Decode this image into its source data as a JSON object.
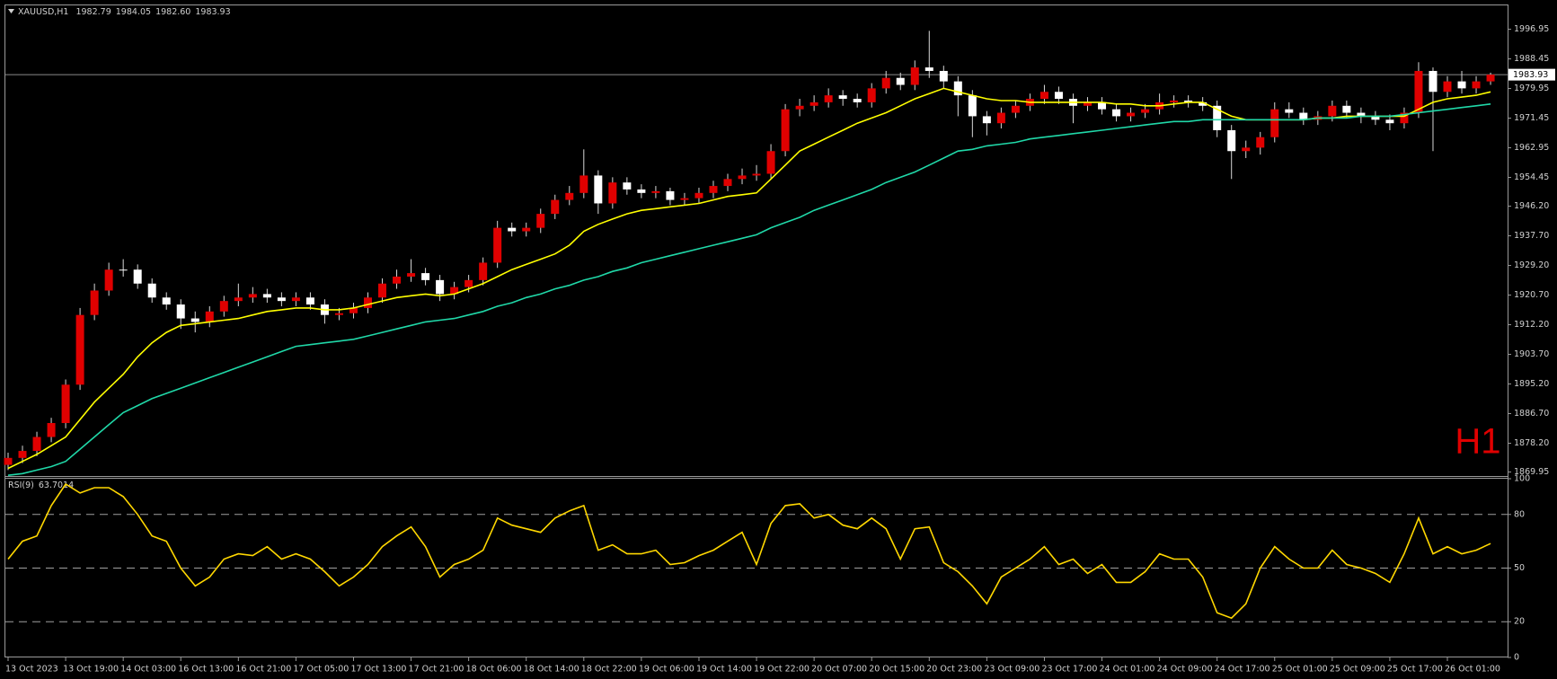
{
  "chart_data": [
    {
      "type": "candlestick",
      "symbol": "XAUUSD,H1",
      "last_bar": [
        1982.79,
        1984.05,
        {
          "value": 1982.6,
          "label": "1982.60"
        },
        1983.93
      ],
      "current_price": 1983.93,
      "timeframe_label": "H1",
      "categories": [
        "13 Oct 2023",
        null,
        null,
        null,
        "13 Oct 19:00",
        null,
        null,
        null,
        "14 Oct 03:00",
        null,
        null,
        null,
        "16 Oct 13:00",
        null,
        null,
        null,
        "16 Oct 21:00",
        null,
        null,
        null,
        "17 Oct 05:00",
        null,
        null,
        null,
        "17 Oct 13:00",
        null,
        null,
        null,
        "17 Oct 21:00",
        null,
        null,
        null,
        "18 Oct 06:00",
        null,
        null,
        null,
        "18 Oct 14:00",
        null,
        null,
        null,
        "18 Oct 22:00",
        null,
        null,
        null,
        "19 Oct 06:00",
        null,
        null,
        null,
        "19 Oct 14:00",
        null,
        null,
        null,
        "19 Oct 22:00",
        null,
        null,
        null,
        "20 Oct 07:00",
        null,
        null,
        null,
        "20 Oct 15:00",
        null,
        null,
        null,
        "20 Oct 23:00",
        null,
        null,
        null,
        "23 Oct 09:00",
        null,
        null,
        null,
        "23 Oct 17:00",
        null,
        null,
        null,
        "24 Oct 01:00",
        null,
        null,
        null,
        "24 Oct 09:00",
        null,
        null,
        null,
        "24 Oct 17:00",
        null,
        null,
        null,
        "25 Oct 01:00",
        null,
        null,
        null,
        "25 Oct 09:00",
        null,
        null,
        null,
        "25 Oct 17:00",
        null,
        null,
        null,
        "26 Oct 01:00",
        null,
        null,
        null
      ],
      "open": [
        1872,
        1874,
        1876,
        1880,
        1884,
        1895,
        1915,
        1922,
        1928,
        1928,
        1924,
        1920,
        1918,
        1914,
        1913,
        1916,
        1919,
        1920,
        1921,
        1920,
        1919,
        1920,
        1918,
        1915,
        1915.5,
        1917,
        1920,
        1924,
        1926,
        1927,
        1925,
        1921,
        1923,
        1925,
        1930,
        1940,
        1939,
        1940,
        1944,
        1948,
        1950,
        1955,
        1947,
        1953,
        1951,
        1950,
        1950.5,
        1948,
        1948.5,
        1950,
        1952,
        1954,
        1955,
        1955.5,
        1962,
        1974,
        1975,
        1976,
        1978,
        1977,
        1976,
        1980,
        1983,
        1981,
        1986,
        1985,
        1982,
        1978,
        1972,
        1970,
        1973,
        1975,
        1977,
        1979,
        1977,
        1975,
        1976,
        1974,
        1972,
        1973,
        1974,
        1976,
        1976.5,
        1976,
        1975,
        1968,
        1962,
        1963,
        1966,
        1974,
        1973,
        1971,
        1972,
        1975,
        1973,
        1972,
        1971,
        1970,
        1973,
        1985,
        1979,
        1982,
        1980,
        1982
      ],
      "high": [
        1875.5,
        1877.5,
        1881.5,
        1885.5,
        1896.5,
        1917,
        1924,
        1930,
        1931,
        1929.5,
        1925.5,
        1921.5,
        1919.5,
        1916,
        1917.5,
        1920.5,
        1924,
        1923,
        1922.5,
        1921.5,
        1921.5,
        1921.5,
        1919.5,
        1917,
        1918.5,
        1921.5,
        1925.5,
        1928,
        1931,
        1928.5,
        1926.5,
        1924.5,
        1926.5,
        1931.5,
        1942,
        1941.5,
        1941.5,
        1945.5,
        1949.5,
        1952,
        1962.5,
        1956.5,
        1954.5,
        1954.5,
        1952.5,
        1952,
        1951.5,
        1950,
        1951.5,
        1953.5,
        1955.5,
        1957,
        1958,
        1964,
        1975.5,
        1977,
        1978,
        1980,
        1979.5,
        1978.5,
        1981.5,
        1985,
        1984.5,
        1988,
        1996.5,
        1986.5,
        1983.5,
        1979.5,
        1973.5,
        1974.5,
        1976.5,
        1978.5,
        1981,
        1980.5,
        1978.5,
        1977.5,
        1977.5,
        1975.5,
        1974.5,
        1975.5,
        1978.5,
        1978,
        1978,
        1977.5,
        1976.5,
        1969.5,
        1965,
        1967.5,
        1976,
        1976,
        1974.5,
        1973.5,
        1976.5,
        1976.5,
        1974.5,
        1973.5,
        1972.5,
        1974.5,
        1987.5,
        1986,
        1983.5,
        1985,
        1983.5,
        1984.5
      ],
      "low": [
        1870.5,
        1872.5,
        1874.5,
        1878.5,
        1882.5,
        1893.5,
        1913.5,
        1920.5,
        1926,
        1922.5,
        1918.5,
        1916.5,
        1911,
        1910,
        1911.5,
        1914.5,
        1917.5,
        1918.5,
        1918.5,
        1917.5,
        1917.5,
        1916.5,
        1912.5,
        1913.5,
        1914,
        1915.5,
        1918.5,
        1922.5,
        1924.5,
        1923.5,
        1919,
        1919.5,
        1921.5,
        1923.5,
        1928.5,
        1937.5,
        1937.5,
        1938.5,
        1942.5,
        1946.5,
        1948.5,
        1944,
        1945.5,
        1949.5,
        1948.5,
        1948.5,
        1946.5,
        1946.5,
        1947,
        1948.5,
        1950.5,
        1952.5,
        1953.5,
        1954,
        1960.5,
        1972,
        1973.5,
        1974.5,
        1975,
        1974.5,
        1974.5,
        1978.5,
        1979.5,
        1979.5,
        1983,
        1980,
        1972,
        1966,
        1966.5,
        1968.5,
        1971.5,
        1973.5,
        1975.5,
        1975.5,
        1970,
        1973.5,
        1972.5,
        1970.5,
        1970.5,
        1971.5,
        1972.5,
        1974.5,
        1974.5,
        1973.5,
        1966,
        1954,
        1960,
        1961,
        1964.5,
        1971.5,
        1969.5,
        1969.5,
        1970.5,
        1971.5,
        1970,
        1969.5,
        1968,
        1968.5,
        1971.5,
        1962,
        1977.5,
        1978.5,
        1978.5,
        1981
      ],
      "close": [
        1874,
        1876,
        1880,
        1884,
        1895,
        1915,
        1922,
        1928,
        1928,
        1924,
        1920,
        1918,
        1914,
        1913,
        1916,
        1919,
        1920,
        1921,
        1920,
        1919,
        1920,
        1918,
        1915,
        1915.5,
        1917,
        1920,
        1924,
        1926,
        1927,
        1925,
        1921,
        1923,
        1925,
        1930,
        1940,
        1939,
        1940,
        1944,
        1948,
        1950,
        1955,
        1947,
        1953,
        1951,
        1950,
        1950.5,
        1948,
        1948.5,
        1950,
        1952,
        1954,
        1955,
        1955.5,
        1962,
        1974,
        1975,
        1976,
        1978,
        1977,
        1976,
        1980,
        1983,
        1981,
        1986,
        1985,
        1982,
        1978,
        1972,
        1970,
        1973,
        1975,
        1977,
        1979,
        1977,
        1975,
        1976,
        1974,
        1972,
        1973,
        1974,
        1976,
        1976.5,
        1976,
        1975,
        1968,
        1962,
        1963,
        1966,
        1974,
        1973,
        1971,
        1972,
        1975,
        1973,
        1972,
        1971,
        1970,
        1973,
        1985,
        1979,
        1982,
        1980,
        1982,
        1983.93
      ],
      "up_color": "#e00000",
      "down_color": "#ffffff",
      "wick_color": "#d8d8d8",
      "series": [
        {
          "color": "#ffff00",
          "values": [
            1871,
            1873,
            1875,
            1877.5,
            1880,
            1885,
            1890,
            1894,
            1898,
            1903,
            1907,
            1910,
            1912,
            1912.5,
            1913,
            1913.5,
            1914,
            1915,
            1916,
            1916.5,
            1917,
            1917,
            1916.5,
            1916.5,
            1917,
            1918,
            1919,
            1920,
            1920.5,
            1921,
            1920.5,
            1921,
            1922.5,
            1924,
            1926,
            1928,
            1929.5,
            1931,
            1932.5,
            1935,
            1939,
            1941,
            1942.5,
            1944,
            1945,
            1945.5,
            1946,
            1946.5,
            1947,
            1948,
            1949,
            1949.5,
            1950,
            1954,
            1958,
            1962,
            1964,
            1966,
            1968,
            1970,
            1971.5,
            1973,
            1975,
            1977,
            1978.5,
            1980,
            1979,
            1978,
            1977,
            1976.5,
            1976.5,
            1976,
            1976,
            1976,
            1976,
            1976,
            1976,
            1975.5,
            1975.5,
            1975,
            1975,
            1975.5,
            1976,
            1976,
            1974,
            1972,
            1971,
            1971,
            1971,
            1971,
            1971,
            1971.5,
            1971.5,
            1972,
            1972,
            1972,
            1972,
            1972,
            1974,
            1976,
            1977,
            1977.5,
            1978,
            1979
          ]
        },
        {
          "color": "#20d8a8",
          "values": [
            1869,
            1869.5,
            1870.5,
            1871.5,
            1873,
            1876.5,
            1880,
            1883.5,
            1887,
            1889,
            1891,
            1892.5,
            1894,
            1895.5,
            1897,
            1898.5,
            1900,
            1901.5,
            1903,
            1904.5,
            1906,
            1906.5,
            1907,
            1907.5,
            1908,
            1909,
            1910,
            1911,
            1912,
            1913,
            1913.5,
            1914,
            1915,
            1916,
            1917.5,
            1918.5,
            1920,
            1921,
            1922.5,
            1923.5,
            1925,
            1926,
            1927.5,
            1928.5,
            1930,
            1931,
            1932,
            1933,
            1934,
            1935,
            1936,
            1937,
            1938,
            1940,
            1941.5,
            1943,
            1945,
            1946.5,
            1948,
            1949.5,
            1951,
            1953,
            1954.5,
            1956,
            1958,
            1960,
            1962,
            1962.5,
            1963.5,
            1964,
            1964.5,
            1965.5,
            1966,
            1966.5,
            1967,
            1967.5,
            1968,
            1968.5,
            1969,
            1969.5,
            1970,
            1970.5,
            1970.5,
            1971,
            1971,
            1971,
            1971,
            1971,
            1971,
            1971,
            1971,
            1971.5,
            1971.5,
            1971.5,
            1972,
            1972,
            1972,
            1972.5,
            1973,
            1973.5,
            1974,
            1974.5,
            1975,
            1975.5
          ]
        }
      ],
      "ylim": [
        1868.8,
        2003.8
      ],
      "yticks": [
        1996.95,
        1988.45,
        1979.95,
        1971.45,
        1962.95,
        1954.45,
        {
          "value": 1946.2,
          "label": "1946.20"
        },
        {
          "value": 1937.7,
          "label": "1937.70"
        },
        {
          "value": 1929.2,
          "label": "1929.20"
        },
        {
          "value": 1920.7,
          "label": "1920.70"
        },
        {
          "value": 1912.2,
          "label": "1912.20"
        },
        {
          "value": 1903.7,
          "label": "1903.70"
        },
        {
          "value": 1895.2,
          "label": "1895.20"
        },
        {
          "value": 1886.7,
          "label": "1886.70"
        },
        {
          "value": 1878.2,
          "label": "1878.20"
        },
        1869.95
      ]
    },
    {
      "type": "line",
      "title": "RSI(9)",
      "last_value": 63.7014,
      "series": [
        {
          "color": "#ffd700",
          "values": [
            55,
            65,
            68,
            85,
            97,
            92,
            95,
            95,
            90,
            80,
            68,
            65,
            50,
            40,
            45,
            55,
            58,
            57,
            62,
            55,
            58,
            55,
            48,
            40,
            45,
            52,
            62,
            68,
            73,
            62,
            45,
            52,
            55,
            60,
            78,
            74,
            72,
            70,
            78,
            82,
            85,
            60,
            63,
            58,
            58,
            60,
            52,
            53,
            57,
            60,
            65,
            70,
            52,
            75,
            85,
            86,
            78,
            80,
            74,
            72,
            78,
            72,
            55,
            72,
            73,
            53,
            48,
            40,
            30,
            45,
            50,
            55,
            62,
            52,
            55,
            47,
            52,
            42,
            42,
            48,
            58,
            55,
            55,
            45,
            25,
            22,
            30,
            50,
            62,
            55,
            50,
            50,
            60,
            52,
            50,
            47,
            42,
            58,
            78,
            58,
            62,
            58,
            60,
            63.7014
          ]
        }
      ],
      "ylim": [
        0,
        100
      ],
      "yticks": [
        100,
        80,
        50,
        20,
        0
      ],
      "levels": [
        80,
        50,
        20
      ]
    }
  ]
}
